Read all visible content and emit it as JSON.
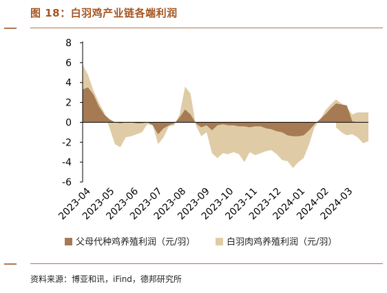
{
  "title": "图 18：白羽鸡产业链各端利润",
  "source": "资料来源：博亚和讯，iFind，德邦研究所",
  "colors": {
    "title": "#a5541f",
    "series_parent": "#a67a53",
    "series_broiler": "#dfcca6"
  },
  "chart_data": {
    "type": "area",
    "ylim": [
      -6,
      8
    ],
    "yticks": [
      -6,
      -4,
      -2,
      0,
      2,
      4,
      6,
      8
    ],
    "x_tick_labels": [
      "2023-04",
      "2023-05",
      "2023-06",
      "2023-07",
      "2023-08",
      "2023-09",
      "2023-10",
      "2023-11",
      "2023-12",
      "2024-01",
      "2024-02",
      "2024-03"
    ],
    "x": [
      "2023-04-01",
      "2023-04-08",
      "2023-04-15",
      "2023-04-22",
      "2023-04-29",
      "2023-05-06",
      "2023-05-13",
      "2023-05-20",
      "2023-05-27",
      "2023-06-03",
      "2023-06-10",
      "2023-06-17",
      "2023-06-24",
      "2023-07-01",
      "2023-07-08",
      "2023-07-15",
      "2023-07-22",
      "2023-07-29",
      "2023-08-05",
      "2023-08-12",
      "2023-08-19",
      "2023-08-26",
      "2023-09-02",
      "2023-09-09",
      "2023-09-16",
      "2023-09-23",
      "2023-09-30",
      "2023-10-07",
      "2023-10-14",
      "2023-10-21",
      "2023-10-28",
      "2023-11-04",
      "2023-11-11",
      "2023-11-18",
      "2023-11-25",
      "2023-12-02",
      "2023-12-09",
      "2023-12-16",
      "2023-12-23",
      "2023-12-30",
      "2024-01-06",
      "2024-01-13",
      "2024-01-20",
      "2024-01-27",
      "2024-02-03",
      "2024-02-10",
      "2024-02-17",
      "2024-02-24",
      "2024-03-02",
      "2024-03-09",
      "2024-03-16",
      "2024-03-23",
      "2024-03-30",
      "2024-04-06"
    ],
    "series": [
      {
        "name": "父母代种鸡养殖利润（元/羽）",
        "color": "#a67a53",
        "values": [
          3.3,
          3.5,
          2.8,
          1.6,
          0.8,
          0.3,
          0.0,
          -0.1,
          0.0,
          0.0,
          -0.1,
          -0.1,
          0.0,
          -0.3,
          -1.2,
          -0.6,
          -0.3,
          -0.1,
          0.5,
          1.3,
          0.8,
          -0.1,
          -0.5,
          -0.3,
          -0.8,
          -0.3,
          -0.2,
          -0.3,
          -0.3,
          -0.4,
          -0.4,
          -0.5,
          -0.4,
          -0.4,
          -0.6,
          -0.7,
          -0.9,
          -1.0,
          -1.3,
          -1.4,
          -1.4,
          -1.3,
          -0.8,
          -0.2,
          0.3,
          0.8,
          1.4,
          1.9,
          1.8,
          1.7,
          0.1,
          0.0,
          0.0,
          0.0
        ]
      },
      {
        "name": "白羽肉鸡养殖利润（元/羽）",
        "color": "#dfcca6",
        "values": [
          5.8,
          4.8,
          3.2,
          2.0,
          1.0,
          -0.6,
          -2.2,
          -2.5,
          -1.5,
          -1.4,
          -1.2,
          -1.0,
          -0.2,
          -0.3,
          -2.2,
          -1.5,
          -0.4,
          -0.3,
          0.8,
          3.6,
          2.9,
          -0.3,
          -1.4,
          -1.0,
          -3.1,
          -3.6,
          -3.1,
          -3.2,
          -3.0,
          -3.2,
          -4.0,
          -3.0,
          -3.3,
          -3.1,
          -2.9,
          -2.8,
          -3.2,
          -3.8,
          -3.9,
          -4.6,
          -4.0,
          -3.6,
          -2.2,
          -0.5,
          0.2,
          1.2,
          1.8,
          2.3,
          1.9,
          1.5,
          0.8,
          1.0,
          1.0,
          1.0
        ]
      }
    ],
    "series_broiler_tail": [
      -0.5,
      -1.0,
      -1.3,
      -1.2,
      -1.5,
      -2.1,
      -1.9
    ]
  }
}
